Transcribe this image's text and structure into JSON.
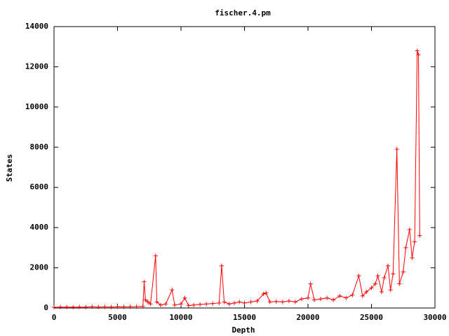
{
  "chart_data": {
    "type": "line",
    "title": "fischer.4.pm",
    "xlabel": "Depth",
    "ylabel": "States",
    "x": [
      0,
      500,
      1000,
      1500,
      2000,
      2500,
      3000,
      3500,
      4000,
      4500,
      5000,
      5500,
      6000,
      6500,
      7000,
      7100,
      7200,
      7400,
      7600,
      8000,
      8100,
      8400,
      8800,
      9300,
      9500,
      10000,
      10300,
      10600,
      11000,
      11500,
      12000,
      12500,
      13000,
      13200,
      13400,
      13800,
      14200,
      14600,
      15000,
      15500,
      16000,
      16500,
      16700,
      17000,
      17500,
      18000,
      18500,
      19000,
      19500,
      20000,
      20200,
      20500,
      21000,
      21500,
      22000,
      22500,
      23000,
      23500,
      24000,
      24300,
      24600,
      25000,
      25300,
      25500,
      25800,
      26000,
      26300,
      26500,
      26700,
      27000,
      27200,
      27500,
      27700,
      28000,
      28200,
      28400,
      28600,
      28700,
      28800
    ],
    "series": [
      {
        "color": "#ff0000",
        "values": [
          40,
          45,
          50,
          40,
          50,
          45,
          60,
          50,
          55,
          50,
          60,
          55,
          60,
          70,
          80,
          1300,
          400,
          300,
          200,
          2600,
          300,
          150,
          200,
          900,
          150,
          200,
          500,
          120,
          150,
          180,
          200,
          220,
          250,
          2100,
          300,
          200,
          250,
          300,
          250,
          300,
          350,
          700,
          750,
          300,
          320,
          300,
          350,
          300,
          450,
          500,
          1200,
          400,
          450,
          500,
          400,
          600,
          500,
          650,
          1600,
          600,
          800,
          1000,
          1200,
          1600,
          800,
          1500,
          2100,
          900,
          1700,
          7900,
          1200,
          1800,
          3000,
          3900,
          2500,
          3300,
          12800,
          12600,
          3600
        ]
      }
    ],
    "xlim": [
      0,
      30000
    ],
    "xticks": [
      0,
      5000,
      10000,
      15000,
      20000,
      25000,
      30000
    ],
    "ylim": [
      0,
      14000
    ],
    "yticks": [
      0,
      2000,
      4000,
      6000,
      8000,
      10000,
      12000,
      14000
    ]
  }
}
